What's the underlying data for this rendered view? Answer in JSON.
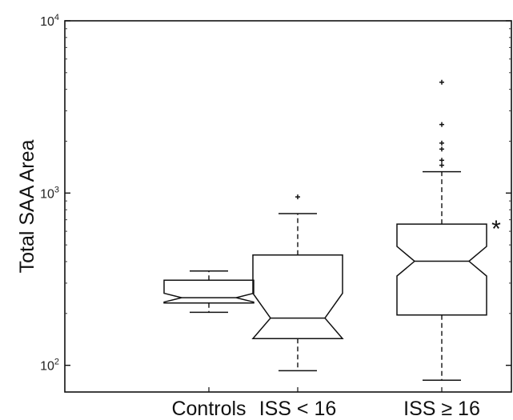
{
  "chart_data": {
    "type": "box",
    "ylabel": "Total SAA Area",
    "yscale": "log",
    "ylim": [
      70,
      10000
    ],
    "y_ticks": [
      {
        "value": 100,
        "base": "10",
        "exp": "2"
      },
      {
        "value": 1000,
        "base": "10",
        "exp": "3"
      },
      {
        "value": 10000,
        "base": "10",
        "exp": "4"
      }
    ],
    "categories": [
      "Controls",
      "ISS < 16",
      "ISS ≥ 16"
    ],
    "boxes": [
      {
        "name": "Controls",
        "whisker_low": 203,
        "q1": 230,
        "median": 247,
        "q3": 312,
        "whisker_high": 353,
        "notch_low": 233,
        "notch_high": 262,
        "outliers": []
      },
      {
        "name": "ISS < 16",
        "whisker_low": 93,
        "q1": 143,
        "median": 188,
        "q3": 437,
        "whisker_high": 760,
        "notch_low": 143,
        "notch_high": 262,
        "outliers": [
          950
        ]
      },
      {
        "name": "ISS ≥ 16",
        "whisker_low": 82,
        "q1": 196,
        "median": 402,
        "q3": 660,
        "whisker_high": 1330,
        "notch_low": 330,
        "notch_high": 490,
        "outliers": [
          1450,
          1550,
          1800,
          1950,
          2500,
          4400
        ]
      }
    ],
    "annotations": [
      {
        "text": "*",
        "category": "ISS ≥ 16"
      }
    ],
    "grid": false,
    "legend": "none"
  }
}
